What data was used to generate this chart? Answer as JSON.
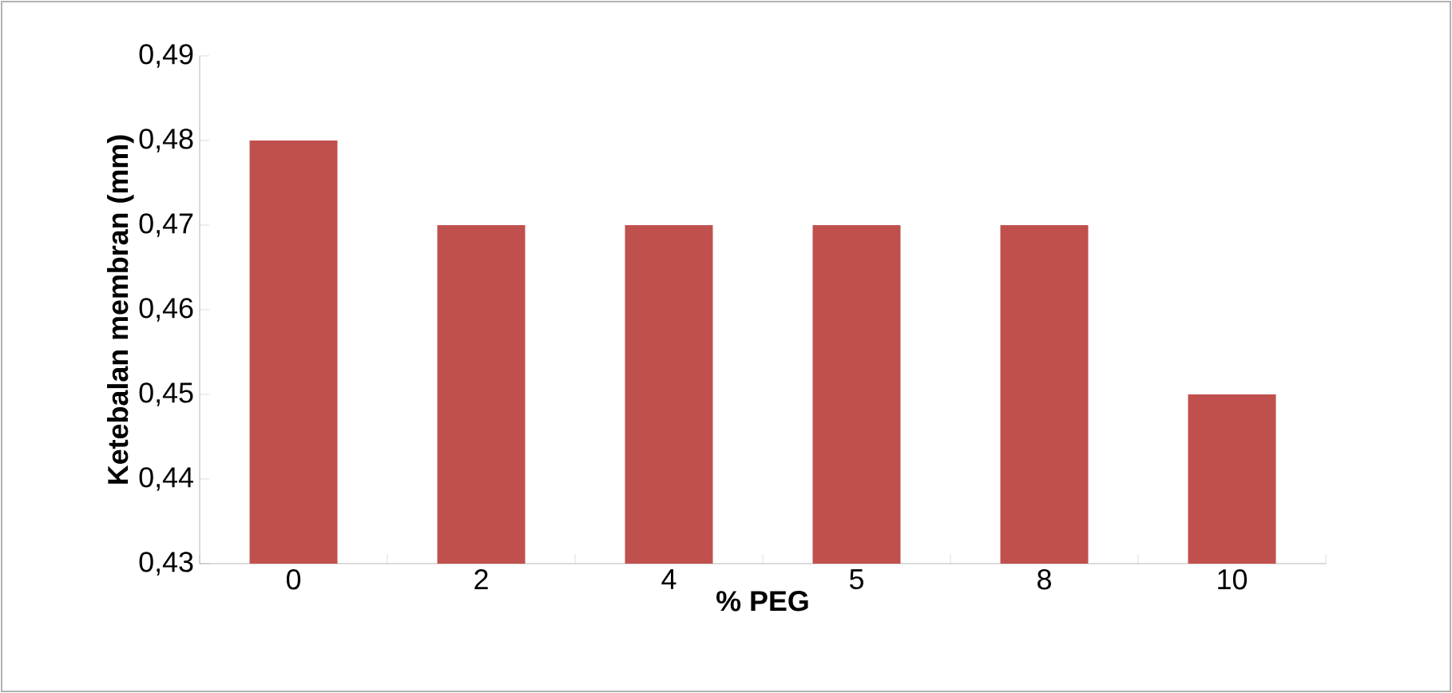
{
  "chart_data": {
    "type": "bar",
    "xlabel": "% PEG",
    "ylabel": "Ketebalan membran (mm)",
    "categories": [
      "0",
      "2",
      "4",
      "5",
      "8",
      "10"
    ],
    "values": [
      0.48,
      0.47,
      0.47,
      0.47,
      0.47,
      0.45
    ],
    "color": "#c0504d",
    "ylim": [
      0.43,
      0.49
    ],
    "yticks": [
      {
        "value": 0.43,
        "label": "0,43"
      },
      {
        "value": 0.44,
        "label": "0,44"
      },
      {
        "value": 0.45,
        "label": "0,45"
      },
      {
        "value": 0.46,
        "label": "0,46"
      },
      {
        "value": 0.47,
        "label": "0,47"
      },
      {
        "value": 0.48,
        "label": "0,48"
      },
      {
        "value": 0.49,
        "label": "0,49"
      }
    ],
    "grid": false
  }
}
